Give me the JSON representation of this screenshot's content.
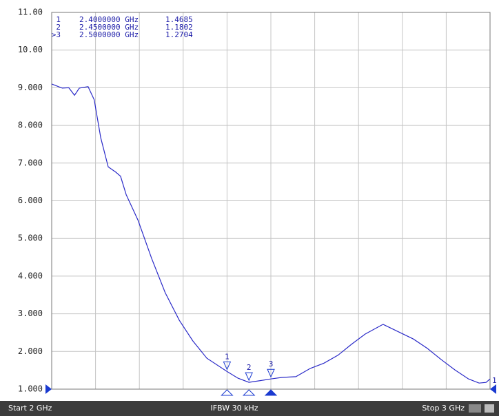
{
  "chart_data": {
    "type": "line",
    "x": [
      2.0,
      2.024,
      2.039,
      2.052,
      2.063,
      2.083,
      2.097,
      2.112,
      2.129,
      2.146,
      2.157,
      2.17,
      2.197,
      2.228,
      2.259,
      2.291,
      2.322,
      2.354,
      2.4,
      2.425,
      2.45,
      2.472,
      2.5,
      2.525,
      2.557,
      2.59,
      2.621,
      2.653,
      2.684,
      2.715,
      2.756,
      2.786,
      2.825,
      2.857,
      2.888,
      2.92,
      2.951,
      2.975,
      2.991,
      3.0
    ],
    "series": [
      {
        "color": "#2a2ac8",
        "values": [
          9.1,
          8.99,
          9.0,
          8.8,
          8.99,
          9.03,
          8.68,
          7.67,
          6.9,
          6.76,
          6.65,
          6.16,
          5.48,
          4.47,
          3.56,
          2.83,
          2.28,
          1.82,
          1.4685,
          1.29,
          1.1802,
          1.22,
          1.2704,
          1.31,
          1.33,
          1.55,
          1.69,
          1.9,
          2.19,
          2.46,
          2.72,
          2.55,
          2.33,
          2.08,
          1.79,
          1.51,
          1.27,
          1.16,
          1.18,
          1.27
        ]
      }
    ],
    "xlim": [
      2,
      3
    ],
    "x_divisions": 10,
    "ylim": [
      1,
      11
    ],
    "yticks": [
      {
        "value": 1,
        "label": "1.000"
      },
      {
        "value": 2,
        "label": "2.000"
      },
      {
        "value": 3,
        "label": "3.000"
      },
      {
        "value": 4,
        "label": "4.000"
      },
      {
        "value": 5,
        "label": "5.000"
      },
      {
        "value": 6,
        "label": "6.000"
      },
      {
        "value": 7,
        "label": "7.000"
      },
      {
        "value": 8,
        "label": "8.000"
      },
      {
        "value": 9,
        "label": "9.000"
      },
      {
        "value": 10,
        "label": "10.00"
      },
      {
        "value": 11,
        "label": "11.00"
      }
    ],
    "grid": true,
    "markers": [
      {
        "name": "1",
        "x": 2.4,
        "value": 1.4685,
        "active": false
      },
      {
        "name": "2",
        "x": 2.45,
        "value": 1.1802,
        "active": false
      },
      {
        "name": "3",
        "x": 2.5,
        "value": 1.2704,
        "active": true
      }
    ],
    "marker_table": [
      [
        "1",
        "2.4000000 GHz",
        "1.4685"
      ],
      [
        "2",
        "2.4500000 GHz",
        "1.1802"
      ],
      [
        ">3",
        "2.5000000 GHz",
        "1.2704"
      ]
    ],
    "reference_label": "1",
    "status": [
      "Start 2 GHz",
      "IFBW 30 kHz",
      "Stop 3 GHz"
    ]
  }
}
